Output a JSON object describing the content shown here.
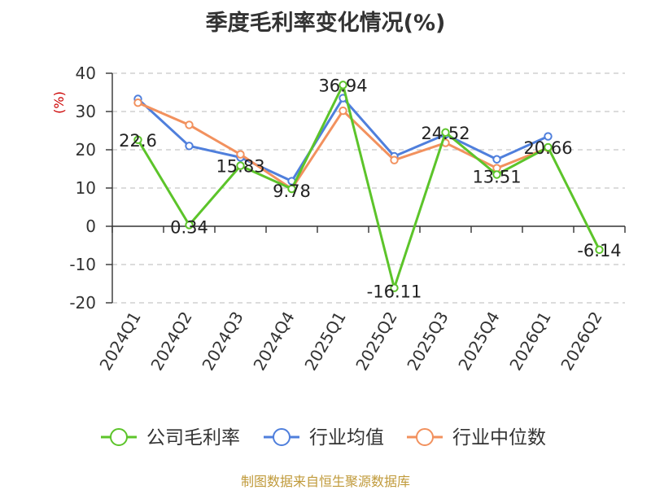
{
  "chart_data": {
    "type": "line",
    "title": "季度毛利率变化情况(%)",
    "ylabel": "(%)",
    "xlabel": "",
    "categories": [
      "2024Q1",
      "2024Q2",
      "2024Q3",
      "2024Q4",
      "2025Q1",
      "2025Q2",
      "2025Q3",
      "2025Q4",
      "2026Q1",
      "2026Q2"
    ],
    "ylim": [
      -20,
      40
    ],
    "yticks": [
      -20,
      -10,
      0,
      10,
      20,
      30,
      40
    ],
    "grid": true,
    "legend_position": "bottom-center",
    "series": [
      {
        "name": "公司毛利率",
        "color": "#5cc42a",
        "values": [
          22.6,
          0.34,
          15.83,
          9.78,
          36.94,
          -16.11,
          24.52,
          13.51,
          20.66,
          -6.14
        ],
        "labels": [
          "22.6",
          "0.34",
          "15.83",
          "9.78",
          "36.94",
          "-16.11",
          "24.52",
          "13.51",
          "20.66",
          "-6.14"
        ]
      },
      {
        "name": "行业均值",
        "color": "#4f7fdc",
        "values": [
          33.3,
          21.0,
          18.0,
          11.8,
          33.5,
          18.3,
          24.0,
          17.5,
          23.5,
          null
        ]
      },
      {
        "name": "行业中位数",
        "color": "#f2915e",
        "values": [
          32.3,
          26.5,
          18.8,
          9.8,
          30.2,
          17.3,
          21.8,
          15.2,
          20.5,
          null
        ]
      }
    ]
  },
  "footer": {
    "source": "制图数据来自恒生聚源数据库"
  }
}
